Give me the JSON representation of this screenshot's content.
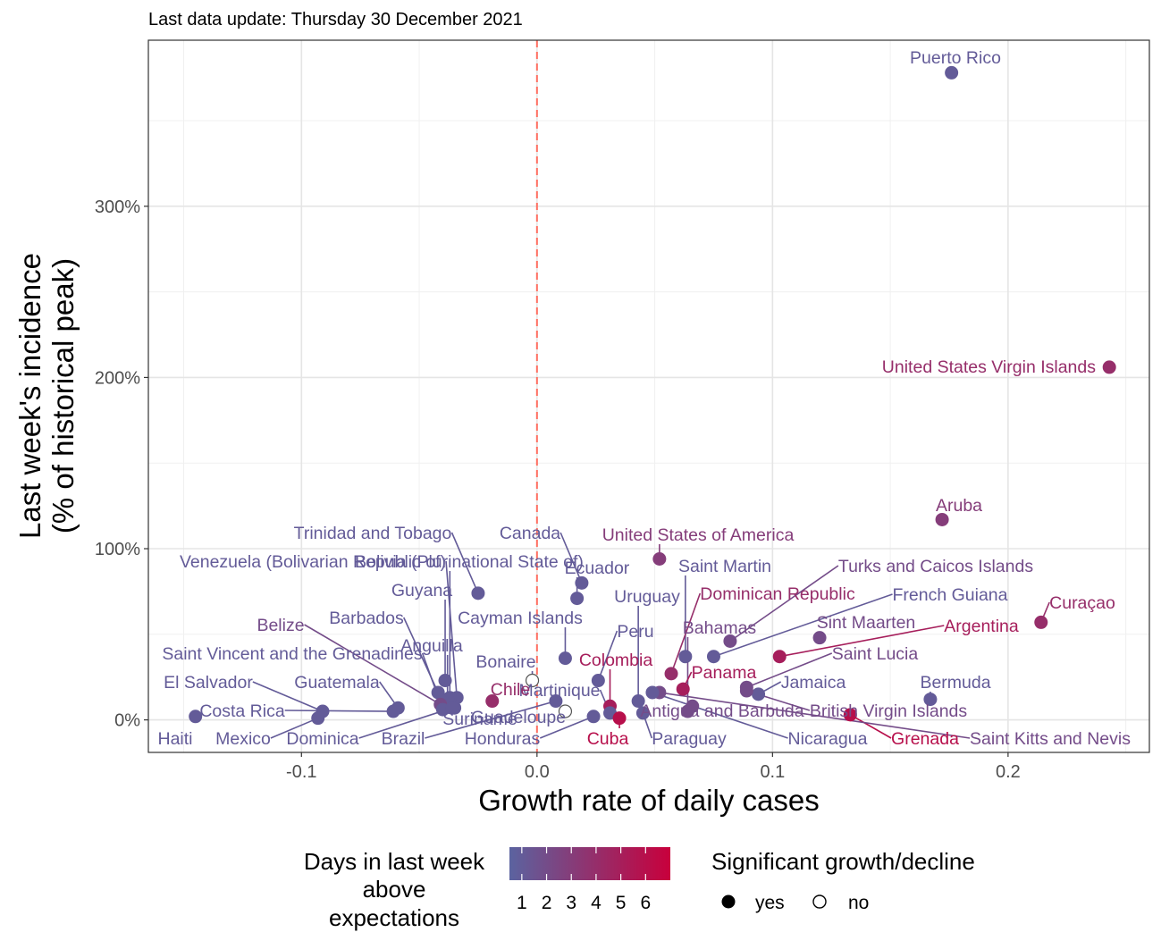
{
  "chart_data": {
    "type": "scatter",
    "subtitle": "Last data update: Thursday 30 December 2021",
    "xlabel": "Growth rate of daily cases",
    "ylabel_lines": [
      "Last week's incidence",
      "(% of historical peak)"
    ],
    "xlim": [
      -0.165,
      0.26
    ],
    "ylim": [
      -19,
      397
    ],
    "x_ticks": [
      {
        "value": -0.1,
        "label": "-0.1"
      },
      {
        "value": 0.0,
        "label": "0.0"
      },
      {
        "value": 0.1,
        "label": "0.1"
      },
      {
        "value": 0.2,
        "label": "0.2"
      }
    ],
    "y_ticks": [
      {
        "value": 0,
        "label": "0%"
      },
      {
        "value": 100,
        "label": "100%"
      },
      {
        "value": 200,
        "label": "200%"
      },
      {
        "value": 300,
        "label": "300%"
      }
    ],
    "reference_line_x": 0,
    "grid": true,
    "legend_placement": "bottom",
    "color_scale": {
      "low": "#5b63a0",
      "high": "#c8003c",
      "min_days": 0.5,
      "max_days": 7
    },
    "legend_color": {
      "title_lines": [
        "Days in last week",
        "above",
        "expectations"
      ],
      "labels": [
        "1",
        "2",
        "3",
        "4",
        "5",
        "6"
      ]
    },
    "legend_shape": {
      "title": "Significant growth/decline",
      "items": [
        {
          "label": "yes",
          "filled": true
        },
        {
          "label": "no",
          "filled": false
        }
      ]
    },
    "points": [
      {
        "name": "Puerto Rico",
        "x": 0.176,
        "y": 378,
        "days": 1,
        "sig": true
      },
      {
        "name": "United States Virgin Islands",
        "x": 0.243,
        "y": 206,
        "days": 4,
        "sig": true
      },
      {
        "name": "Aruba",
        "x": 0.172,
        "y": 117,
        "days": 3,
        "sig": true
      },
      {
        "name": "Curaçao",
        "x": 0.214,
        "y": 57,
        "days": 4,
        "sig": true
      },
      {
        "name": "Bermuda",
        "x": 0.167,
        "y": 12,
        "days": 1,
        "sig": true
      },
      {
        "name": "Turks and Caicos Islands",
        "x": 0.082,
        "y": 46,
        "days": 2,
        "sig": true
      },
      {
        "name": "French Guiana",
        "x": 0.075,
        "y": 37,
        "days": 1,
        "sig": true
      },
      {
        "name": "Argentina",
        "x": 0.103,
        "y": 37,
        "days": 5,
        "sig": true
      },
      {
        "name": "Sint Maarten",
        "x": 0.12,
        "y": 48,
        "days": 2,
        "sig": true
      },
      {
        "name": "Saint Lucia",
        "x": 0.089,
        "y": 19,
        "days": 2,
        "sig": true
      },
      {
        "name": "Jamaica",
        "x": 0.094,
        "y": 15,
        "days": 1,
        "sig": true
      },
      {
        "name": "British Virgin Islands",
        "x": 0.089,
        "y": 17,
        "days": 2,
        "sig": true
      },
      {
        "name": "Grenada",
        "x": 0.133,
        "y": 3,
        "days": 6,
        "sig": true
      },
      {
        "name": "Saint Kitts and Nevis",
        "x": 0.052,
        "y": 16,
        "days": 2,
        "sig": true
      },
      {
        "name": "Nicaragua",
        "x": 0.049,
        "y": 16,
        "days": 1,
        "sig": true
      },
      {
        "name": "Antigua and Barbuda",
        "x": 0.066,
        "y": 8,
        "days": 2,
        "sig": true
      },
      {
        "name": "Paraguay",
        "x": 0.045,
        "y": 4,
        "days": 1,
        "sig": true
      },
      {
        "name": "Uruguay",
        "x": 0.043,
        "y": 11,
        "days": 1,
        "sig": true
      },
      {
        "name": "Saint Martin",
        "x": 0.063,
        "y": 37,
        "days": 1,
        "sig": true
      },
      {
        "name": "Bahamas",
        "x": 0.064,
        "y": 5,
        "days": 2,
        "sig": true
      },
      {
        "name": "Dominican Republic",
        "x": 0.057,
        "y": 27,
        "days": 4,
        "sig": true
      },
      {
        "name": "Panama",
        "x": 0.062,
        "y": 18,
        "days": 5,
        "sig": true
      },
      {
        "name": "United States of America",
        "x": 0.052,
        "y": 94,
        "days": 3,
        "sig": true
      },
      {
        "name": "Canada",
        "x": 0.019,
        "y": 80,
        "days": 1,
        "sig": true
      },
      {
        "name": "Ecuador",
        "x": 0.017,
        "y": 71,
        "days": 1,
        "sig": true
      },
      {
        "name": "Cayman Islands",
        "x": 0.012,
        "y": 36,
        "days": 1,
        "sig": true
      },
      {
        "name": "Peru",
        "x": 0.026,
        "y": 23,
        "days": 1,
        "sig": true
      },
      {
        "name": "Colombia",
        "x": 0.031,
        "y": 8,
        "days": 5,
        "sig": true
      },
      {
        "name": "Martinique",
        "x": 0.031,
        "y": 4,
        "days": 1,
        "sig": true
      },
      {
        "name": "Cuba",
        "x": 0.035,
        "y": 1,
        "days": 6,
        "sig": true
      },
      {
        "name": "Honduras",
        "x": 0.024,
        "y": 2,
        "days": 1,
        "sig": true
      },
      {
        "name": "Guadeloupe",
        "x": 0.012,
        "y": 5,
        "days": 1,
        "sig": false
      },
      {
        "name": "Bonaire",
        "x": -0.002,
        "y": 23,
        "days": 1,
        "sig": false
      },
      {
        "name": "Chile",
        "x": -0.019,
        "y": 11,
        "days": 4,
        "sig": true
      },
      {
        "name": "Brazil",
        "x": 0.008,
        "y": 11,
        "days": 1,
        "sig": true
      },
      {
        "name": "Suriname",
        "x": -0.035,
        "y": 7,
        "days": 1,
        "sig": true
      },
      {
        "name": "Trinidad and Tobago",
        "x": -0.025,
        "y": 74,
        "days": 1,
        "sig": true
      },
      {
        "name": "Venezuela (Bolivarian Republic of)",
        "x": -0.034,
        "y": 13,
        "days": 1,
        "sig": true
      },
      {
        "name": "Bolivia (Plurinational State of)",
        "x": -0.037,
        "y": 13,
        "days": 1,
        "sig": true
      },
      {
        "name": "Guyana",
        "x": -0.039,
        "y": 23,
        "days": 1,
        "sig": true
      },
      {
        "name": "Barbados",
        "x": -0.042,
        "y": 16,
        "days": 1,
        "sig": true
      },
      {
        "name": "Anguilla",
        "x": -0.038,
        "y": 12,
        "days": 1,
        "sig": true
      },
      {
        "name": "Belize",
        "x": -0.041,
        "y": 9,
        "days": 2,
        "sig": true
      },
      {
        "name": "Saint Vincent and the Grenadines",
        "x": -0.04,
        "y": 6,
        "days": 1,
        "sig": true
      },
      {
        "name": "Guatemala",
        "x": -0.059,
        "y": 7,
        "days": 1,
        "sig": true
      },
      {
        "name": "El Salvador",
        "x": -0.091,
        "y": 5,
        "days": 1,
        "sig": true
      },
      {
        "name": "Costa Rica",
        "x": -0.061,
        "y": 5,
        "days": 1,
        "sig": true
      },
      {
        "name": "Mexico",
        "x": -0.093,
        "y": 1,
        "days": 1,
        "sig": true
      },
      {
        "name": "Dominica",
        "x": -0.036,
        "y": 7,
        "days": 1,
        "sig": true
      },
      {
        "name": "Haiti",
        "x": -0.145,
        "y": 2,
        "days": 1,
        "sig": true
      }
    ]
  }
}
